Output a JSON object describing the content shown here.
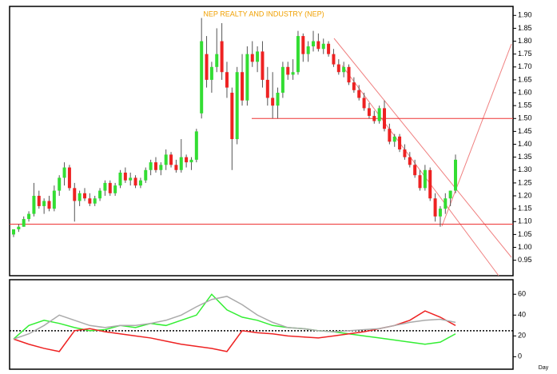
{
  "chart_data": [
    {
      "type": "candlestick",
      "title": "NEP REALTY AND INDUSTRY (NEP)",
      "up_color": "#33dd33",
      "down_color": "#ee2222",
      "open": [
        1.05,
        1.07,
        1.08,
        1.11,
        1.13,
        1.2,
        1.16,
        1.18,
        1.15,
        1.22,
        1.27,
        1.31,
        1.23,
        1.18,
        1.21,
        1.19,
        1.17,
        1.19,
        1.22,
        1.25,
        1.21,
        1.24,
        1.29,
        1.26,
        1.27,
        1.24,
        1.26,
        1.3,
        1.33,
        1.3,
        1.32,
        1.36,
        1.32,
        1.3,
        1.35,
        1.33,
        1.34,
        1.52,
        1.75,
        1.65,
        1.7,
        1.8,
        1.68,
        1.6,
        1.42,
        1.68,
        1.57,
        1.75,
        1.72,
        1.76,
        1.65,
        1.58,
        1.55,
        1.6,
        1.7,
        1.67,
        1.68,
        1.82,
        1.75,
        1.78,
        1.8,
        1.77,
        1.79,
        1.75,
        1.71,
        1.68,
        1.7,
        1.64,
        1.61,
        1.58,
        1.54,
        1.51,
        1.49,
        1.54,
        1.46,
        1.41,
        1.43,
        1.38,
        1.35,
        1.32,
        1.28,
        1.23,
        1.3,
        1.19,
        1.12,
        1.15,
        1.19,
        1.22
      ],
      "high": [
        1.07,
        1.09,
        1.12,
        1.14,
        1.25,
        1.22,
        1.19,
        1.2,
        1.24,
        1.28,
        1.33,
        1.32,
        1.25,
        1.22,
        1.23,
        1.21,
        1.2,
        1.23,
        1.26,
        1.26,
        1.25,
        1.3,
        1.31,
        1.29,
        1.28,
        1.27,
        1.31,
        1.34,
        1.35,
        1.33,
        1.38,
        1.37,
        1.34,
        1.42,
        1.36,
        1.35,
        1.46,
        1.89,
        1.82,
        1.72,
        1.85,
        1.87,
        1.72,
        1.62,
        1.7,
        1.75,
        1.78,
        1.8,
        1.78,
        1.8,
        1.7,
        1.68,
        1.62,
        1.72,
        1.72,
        1.73,
        1.84,
        1.83,
        1.8,
        1.84,
        1.83,
        1.81,
        1.8,
        1.77,
        1.73,
        1.72,
        1.71,
        1.66,
        1.63,
        1.6,
        1.56,
        1.53,
        1.55,
        1.57,
        1.48,
        1.44,
        1.44,
        1.4,
        1.37,
        1.34,
        1.3,
        1.32,
        1.31,
        1.21,
        1.16,
        1.21,
        1.22,
        1.36
      ],
      "low": [
        1.04,
        1.06,
        1.08,
        1.1,
        1.12,
        1.15,
        1.13,
        1.14,
        1.14,
        1.2,
        1.24,
        1.22,
        1.1,
        1.16,
        1.18,
        1.16,
        1.16,
        1.18,
        1.2,
        1.2,
        1.2,
        1.23,
        1.25,
        1.24,
        1.23,
        1.23,
        1.25,
        1.28,
        1.29,
        1.28,
        1.3,
        1.31,
        1.29,
        1.29,
        1.31,
        1.3,
        1.33,
        1.5,
        1.62,
        1.6,
        1.68,
        1.65,
        1.58,
        1.3,
        1.4,
        1.55,
        1.55,
        1.7,
        1.68,
        1.62,
        1.55,
        1.5,
        1.5,
        1.58,
        1.65,
        1.65,
        1.67,
        1.72,
        1.72,
        1.76,
        1.76,
        1.75,
        1.74,
        1.7,
        1.67,
        1.66,
        1.63,
        1.6,
        1.57,
        1.53,
        1.5,
        1.48,
        1.48,
        1.45,
        1.4,
        1.39,
        1.37,
        1.34,
        1.31,
        1.27,
        1.22,
        1.22,
        1.18,
        1.1,
        1.08,
        1.13,
        1.16,
        1.21
      ],
      "close": [
        1.07,
        1.08,
        1.11,
        1.13,
        1.2,
        1.16,
        1.18,
        1.15,
        1.22,
        1.27,
        1.31,
        1.23,
        1.18,
        1.21,
        1.19,
        1.17,
        1.19,
        1.22,
        1.25,
        1.21,
        1.24,
        1.29,
        1.26,
        1.27,
        1.24,
        1.26,
        1.3,
        1.33,
        1.3,
        1.32,
        1.36,
        1.32,
        1.3,
        1.35,
        1.33,
        1.34,
        1.45,
        1.8,
        1.65,
        1.7,
        1.75,
        1.68,
        1.62,
        1.42,
        1.68,
        1.57,
        1.75,
        1.72,
        1.76,
        1.65,
        1.58,
        1.55,
        1.6,
        1.7,
        1.67,
        1.68,
        1.82,
        1.75,
        1.78,
        1.8,
        1.77,
        1.79,
        1.75,
        1.71,
        1.68,
        1.7,
        1.64,
        1.61,
        1.58,
        1.54,
        1.51,
        1.49,
        1.54,
        1.46,
        1.41,
        1.43,
        1.38,
        1.35,
        1.32,
        1.28,
        1.23,
        1.3,
        1.19,
        1.12,
        1.15,
        1.19,
        1.22,
        1.34
      ],
      "reference_lines": [
        1.09,
        1.5
      ],
      "reference_color": "#ee3333",
      "ylim": [
        0.89,
        1.935
      ],
      "yticks": [
        0.95,
        {
          "value": 1,
          "label": "1.00"
        },
        1.05,
        {
          "value": 1.1,
          "label": "1.10"
        },
        1.15,
        {
          "value": 1.2,
          "label": "1.20"
        },
        1.25,
        {
          "value": 1.3,
          "label": "1.30"
        },
        1.35,
        {
          "value": 1.4,
          "label": "1.40"
        },
        1.45,
        {
          "value": 1.5,
          "label": "1.50"
        },
        1.55,
        {
          "value": 1.6,
          "label": "1.60"
        },
        1.65,
        {
          "value": 1.7,
          "label": "1.70"
        },
        1.75,
        {
          "value": 1.8,
          "label": "1.80"
        },
        1.85,
        {
          "value": 1.9,
          "label": "1.90"
        }
      ]
    },
    {
      "type": "line",
      "x_label": "Day",
      "series": [
        {
          "color": "#33ee33",
          "values": [
            17,
            30,
            35,
            32,
            28,
            25,
            26,
            30,
            28,
            32,
            30,
            35,
            40,
            60,
            45,
            38,
            35,
            30,
            28,
            27,
            25,
            24,
            22,
            20,
            18,
            16,
            14,
            12,
            14,
            22
          ]
        },
        {
          "color": "#ee2222",
          "values": [
            17,
            12,
            8,
            5,
            25,
            27,
            24,
            22,
            20,
            18,
            15,
            12,
            10,
            8,
            5,
            25,
            23,
            22,
            20,
            19,
            18,
            20,
            22,
            24,
            27,
            30,
            35,
            44,
            38,
            30
          ]
        },
        {
          "color": "#aaaaaa",
          "values": [
            17,
            22,
            30,
            40,
            35,
            30,
            28,
            30,
            30,
            32,
            35,
            40,
            48,
            55,
            58,
            50,
            40,
            33,
            28,
            27,
            25,
            24,
            25,
            26,
            27,
            30,
            33,
            35,
            36,
            33
          ]
        }
      ],
      "reference_lines": [
        25
      ],
      "ylim": [
        -12,
        74
      ],
      "yticks": [
        0,
        20,
        40,
        60
      ]
    }
  ]
}
